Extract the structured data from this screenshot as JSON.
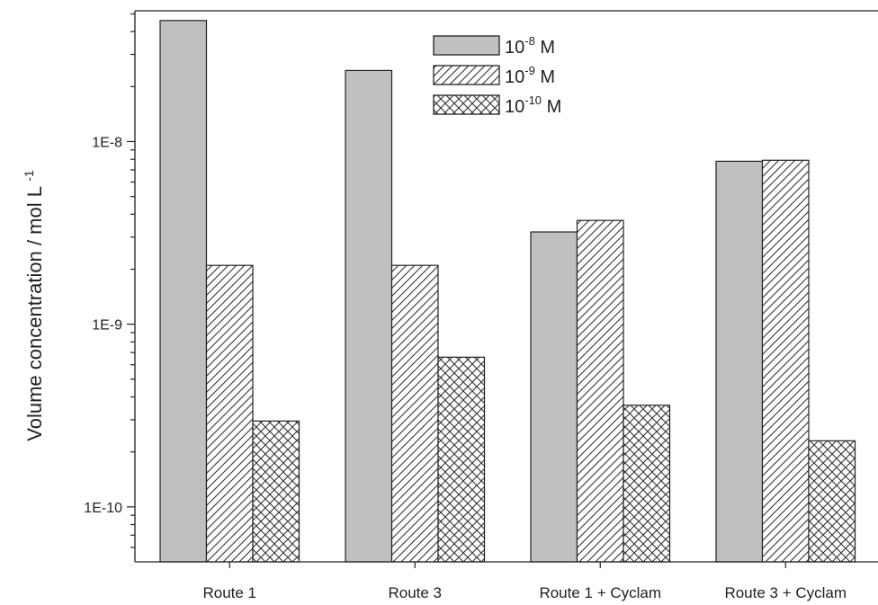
{
  "chart_data": {
    "type": "bar",
    "title": "",
    "xlabel": "",
    "ylabel": "Volume concentration / mol L",
    "ylabel_sup": "-1",
    "yscale": "log",
    "ylim": [
      5e-11,
      5.2e-08
    ],
    "grid": false,
    "legend_position": "top-center",
    "categories": [
      "Route 1",
      "Route 3",
      "Route 1 + Cyclam",
      "Route 3 + Cyclam"
    ],
    "yticks": [
      {
        "value": 1e-10,
        "label": "1E-10"
      },
      {
        "value": 1e-09,
        "label": "1E-9"
      },
      {
        "value": 1e-08,
        "label": "1E-8"
      }
    ],
    "series": [
      {
        "name": "10",
        "name_sup": "-8",
        "name_suffix": " M",
        "pattern": "solid-gray",
        "fill": "#c0c0c0",
        "values": [
          4.6e-08,
          2.45e-08,
          3.2e-09,
          7.8e-09
        ]
      },
      {
        "name": "10",
        "name_sup": "-9",
        "name_suffix": " M",
        "pattern": "diagonal-hatch",
        "fill": "#ffffff",
        "values": [
          2.1e-09,
          2.1e-09,
          3.7e-09,
          7.9e-09
        ]
      },
      {
        "name": "10",
        "name_sup": "-10",
        "name_suffix": " M",
        "pattern": "crosshatch",
        "fill": "#ffffff",
        "values": [
          2.95e-10,
          6.6e-10,
          3.6e-10,
          2.3e-10
        ]
      }
    ]
  }
}
